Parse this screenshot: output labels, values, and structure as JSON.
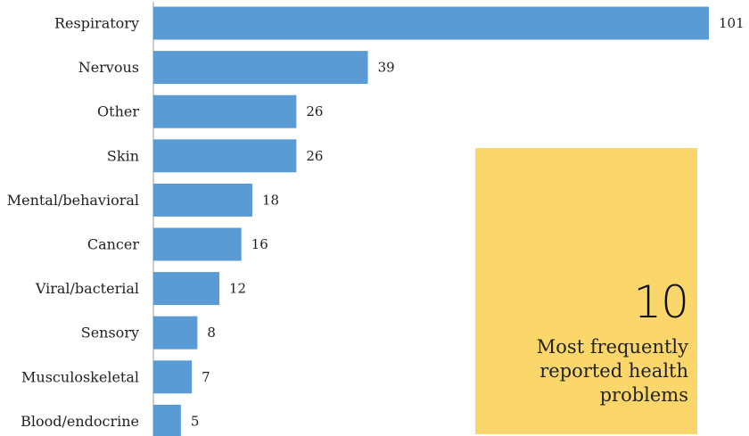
{
  "chart_data": {
    "type": "bar",
    "orientation": "horizontal",
    "categories": [
      "Respiratory",
      "Nervous",
      "Other",
      "Skin",
      "Mental/behavioral",
      "Cancer",
      "Viral/bacterial",
      "Sensory",
      "Musculoskeletal",
      "Blood/endocrine"
    ],
    "values": [
      101,
      39,
      26,
      26,
      18,
      16,
      12,
      8,
      7,
      5
    ],
    "value_labels": [
      "101",
      "39",
      "26",
      "26",
      "18",
      "16",
      "12",
      "8",
      "7",
      "5"
    ],
    "xlim": [
      0,
      101
    ],
    "grid": false,
    "bar_color": "#5b9bd5",
    "axis_color": "#9a9a9a"
  },
  "callout": {
    "number": "10",
    "text": "Most frequently reported health problems",
    "background": "#fad66b"
  }
}
